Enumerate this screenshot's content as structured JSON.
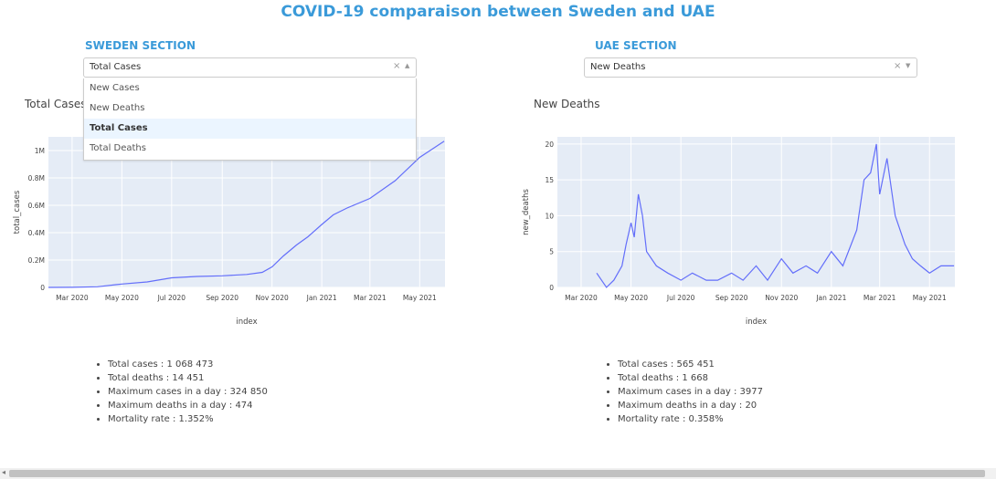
{
  "page_title": "COVID-19 comparaison between Sweden and UAE",
  "sweden": {
    "section_title": "SWEDEN SECTION",
    "dropdown": {
      "selected": "Total Cases",
      "options": [
        "New Cases",
        "New Deaths",
        "Total Cases",
        "Total Deaths"
      ],
      "selected_index": 2,
      "open": true
    },
    "plot_title": "Total Cases",
    "stats": [
      "Total cases : 1 068 473",
      "Total deaths : 14 451",
      "Maximum cases in a day : 324 850",
      "Maximum deaths in a day : 474",
      "Mortality rate : 1.352%"
    ]
  },
  "uae": {
    "section_title": "UAE SECTION",
    "dropdown": {
      "selected": "New Deaths",
      "open": false
    },
    "plot_title": "New Deaths",
    "stats": [
      "Total cases : 565 451",
      "Total deaths : 1 668",
      "Maximum cases in a day : 3977",
      "Maximum deaths in a day : 20",
      "Mortality rate : 0.358%"
    ]
  },
  "chart_data": [
    {
      "type": "line",
      "title": "Total Cases",
      "xlabel": "index",
      "ylabel": "total_cases",
      "x_ticks": [
        "Mar 2020",
        "May 2020",
        "Jul 2020",
        "Sep 2020",
        "Nov 2020",
        "Jan 2021",
        "Mar 2021",
        "May 2021"
      ],
      "y_ticks": [
        "0",
        "0.2M",
        "0.4M",
        "0.6M",
        "0.8M",
        "1M"
      ],
      "series": [
        {
          "x": [
            "2020-02-01",
            "2020-03-01",
            "2020-04-01",
            "2020-05-01",
            "2020-06-01",
            "2020-07-01",
            "2020-08-01",
            "2020-09-01",
            "2020-10-01",
            "2020-10-20",
            "2020-11-01",
            "2020-11-15",
            "2020-12-01",
            "2020-12-15",
            "2021-01-01",
            "2021-01-15",
            "2021-02-01",
            "2021-03-01",
            "2021-04-01",
            "2021-05-01",
            "2021-05-31"
          ],
          "y": [
            0,
            500,
            5000,
            25000,
            40000,
            70000,
            80000,
            85000,
            95000,
            110000,
            150000,
            230000,
            310000,
            370000,
            460000,
            530000,
            580000,
            650000,
            780000,
            950000,
            1068473
          ]
        }
      ],
      "color": "#636efa"
    },
    {
      "type": "line",
      "title": "New Deaths",
      "xlabel": "index",
      "ylabel": "new_deaths",
      "x_ticks": [
        "Mar 2020",
        "May 2020",
        "Jul 2020",
        "Sep 2020",
        "Nov 2020",
        "Jan 2021",
        "Mar 2021",
        "May 2021"
      ],
      "y_ticks": [
        "0",
        "5",
        "10",
        "15",
        "20"
      ],
      "series": [
        {
          "x": [
            "2020-03-20",
            "2020-04-01",
            "2020-04-10",
            "2020-04-20",
            "2020-04-25",
            "2020-05-01",
            "2020-05-05",
            "2020-05-10",
            "2020-05-15",
            "2020-05-20",
            "2020-06-01",
            "2020-06-15",
            "2020-07-01",
            "2020-07-15",
            "2020-08-01",
            "2020-08-15",
            "2020-09-01",
            "2020-09-15",
            "2020-10-01",
            "2020-10-15",
            "2020-11-01",
            "2020-11-15",
            "2020-12-01",
            "2020-12-15",
            "2021-01-01",
            "2021-01-15",
            "2021-02-01",
            "2021-02-10",
            "2021-02-18",
            "2021-02-25",
            "2021-03-01",
            "2021-03-10",
            "2021-03-20",
            "2021-04-01",
            "2021-04-10",
            "2021-04-20",
            "2021-05-01",
            "2021-05-15",
            "2021-05-31"
          ],
          "y": [
            2,
            0,
            1,
            3,
            6,
            9,
            7,
            13,
            10,
            5,
            3,
            2,
            1,
            2,
            1,
            1,
            2,
            1,
            3,
            1,
            4,
            2,
            3,
            2,
            5,
            3,
            8,
            15,
            16,
            20,
            13,
            18,
            10,
            6,
            4,
            3,
            2,
            3,
            3
          ]
        }
      ],
      "color": "#636efa"
    }
  ]
}
